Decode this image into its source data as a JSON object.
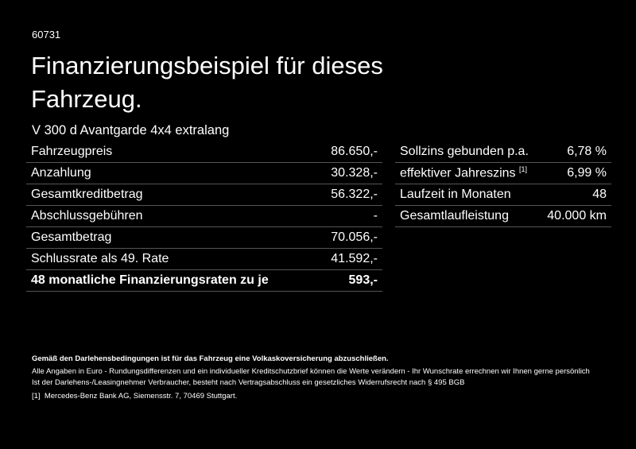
{
  "header": {
    "code": "60731",
    "title": "Finanzierungsbeispiel für dieses Fahrzeug.",
    "model": "V 300 d Avantgarde 4x4 extralang"
  },
  "left_table": {
    "rows": [
      [
        "Fahrzeugpreis",
        "86.650,-"
      ],
      [
        "Anzahlung",
        "30.328,-"
      ],
      [
        "Gesamtkreditbetrag",
        "56.322,-"
      ],
      [
        "Abschlussgebühren",
        "-"
      ],
      [
        "Gesamtbetrag",
        "70.056,-"
      ],
      [
        "Schlussrate als 49. Rate",
        "41.592,-"
      ],
      [
        "48 monatliche Finanzierungsraten zu je",
        "593,-"
      ]
    ]
  },
  "right_table": {
    "rows": [
      [
        "Sollzins gebunden p.a.",
        "6,78 %"
      ],
      [
        "effektiver Jahreszins",
        "6,99 %"
      ],
      [
        "Laufzeit in Monaten",
        "48"
      ],
      [
        "Gesamtlaufleistung",
        "40.000 km"
      ]
    ],
    "footnote_ref": "[1]"
  },
  "footer": {
    "notice": "Gemäß den Darlehensbedingungen ist für das Fahrzeug eine Volkaskoversicherung abzuschließen.",
    "disclaimer_1": "Alle Angaben in Euro - Rundungsdifferenzen und ein individueller Kreditschutzbrief können die Werte verändern - Ihr Wunschrate errechnen wir Ihnen gerne persönlich",
    "disclaimer_2": "Ist der Darlehens-/Leasingnehmer Verbraucher, besteht nach Vertragsabschluss ein gesetzliches Widerrufsrecht nach § 495 BGB",
    "footnote_marker": "[1]",
    "footnote_text": "Mercedes-Benz Bank AG, Siemensstr. 7, 70469 Stuttgart."
  }
}
